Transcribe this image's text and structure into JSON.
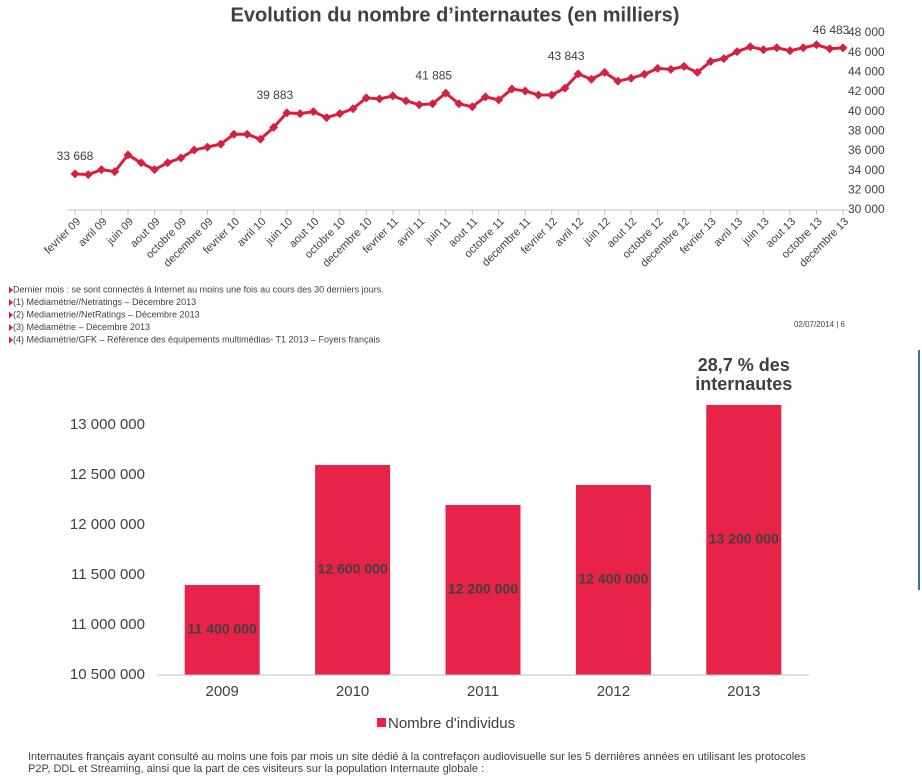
{
  "chart_data": [
    {
      "type": "line",
      "title": "Evolution du nombre d’internautes (en milliers)",
      "color": "#d6203f",
      "categories": [
        "fevrier 09",
        null,
        "avril 09",
        null,
        "juin 09",
        null,
        "aout 09",
        null,
        "octobre 09",
        null,
        "decembre 09",
        null,
        "fevrier 10",
        null,
        "avril 10",
        null,
        "juin 10",
        null,
        "aout 10",
        null,
        "octobre 10",
        null,
        "decembre 10",
        null,
        "fevrier 11",
        null,
        "avril 11",
        null,
        "juin 11",
        null,
        "aout 11",
        null,
        "octobre 11",
        null,
        "decembre 11",
        null,
        "fevrier 12",
        null,
        "avril 12",
        null,
        "juin 12",
        null,
        "aout 12",
        null,
        "octobre 12",
        null,
        "decembre 12",
        null,
        "fevrier 13",
        null,
        "avril 13",
        null,
        "juin 13",
        null,
        "aout 13",
        null,
        "octobre 13",
        null,
        "decembre 13"
      ],
      "values": [
        33668,
        33600,
        34100,
        33900,
        35600,
        34800,
        34100,
        34800,
        35300,
        36100,
        36400,
        36700,
        37700,
        37700,
        37200,
        38400,
        39883,
        39800,
        40000,
        39400,
        39800,
        40300,
        41400,
        41300,
        41600,
        41100,
        40700,
        40800,
        41885,
        40800,
        40500,
        41500,
        41200,
        42300,
        42100,
        41700,
        41700,
        42400,
        43843,
        43300,
        44000,
        43100,
        43400,
        43800,
        44400,
        44300,
        44600,
        44000,
        45100,
        45400,
        46100,
        46600,
        46300,
        46500,
        46200,
        46500,
        46800,
        46400,
        46483
      ],
      "value_labels": [
        "33 668",
        null,
        null,
        null,
        null,
        null,
        null,
        null,
        null,
        null,
        null,
        null,
        null,
        null,
        null,
        null,
        "39 883",
        null,
        null,
        null,
        null,
        null,
        null,
        null,
        null,
        null,
        null,
        null,
        "41 885",
        null,
        null,
        null,
        null,
        null,
        null,
        null,
        null,
        null,
        "43 843",
        null,
        null,
        null,
        null,
        null,
        null,
        null,
        null,
        null,
        null,
        null,
        null,
        null,
        null,
        null,
        null,
        null,
        null,
        null,
        "46 483"
      ],
      "ylim": [
        30000,
        48000
      ],
      "yticks": [
        {
          "value": 30000,
          "label": "30 000"
        },
        {
          "value": 32000,
          "label": "32 000"
        },
        {
          "value": 34000,
          "label": "34 000"
        },
        {
          "value": 36000,
          "label": "36 000"
        },
        {
          "value": 38000,
          "label": "38 000"
        },
        {
          "value": 40000,
          "label": "40 000"
        },
        {
          "value": 42000,
          "label": "42 000"
        },
        {
          "value": 44000,
          "label": "44 000"
        },
        {
          "value": 46000,
          "label": "46 000"
        },
        {
          "value": 48000,
          "label": "48 000"
        }
      ],
      "notes": [
        "Dernier mois : se sont connectés à Internet au moins une fois au cours des 30 derniers jours.",
        "(1) Médiamétrie//Netratings – Décembre 2013",
        "(2) Mediametrie//NetRatings – Décembre 2013",
        "(3) Médiamétrie – Décembre 2013",
        "(4) Médiamétrie/GFK – Référence des équipements multimédias- T1 2013 – Foyers français"
      ],
      "page_info": "02/07/2014  |  6"
    },
    {
      "type": "bar",
      "categories": [
        "2009",
        "2010",
        "2011",
        "2012",
        "2013"
      ],
      "series": [
        {
          "name": "Nombre d'individus",
          "color": "#e8234a",
          "values": [
            11400000,
            12600000,
            12200000,
            12400000,
            13200000
          ],
          "value_labels": [
            "11 400 000",
            "12 600 000",
            "12 200 000",
            "12 400 000",
            "13 200 000"
          ]
        }
      ],
      "annotation": [
        "28,7 % des",
        "internautes"
      ],
      "ylim": [
        10500000,
        13500000
      ],
      "yticks": [
        {
          "value": 10500000,
          "label": "10 500 000"
        },
        {
          "value": 11000000,
          "label": "11 000 000"
        },
        {
          "value": 11500000,
          "label": "11 500 000"
        },
        {
          "value": 12000000,
          "label": "12 000 000"
        },
        {
          "value": 12500000,
          "label": "12 500 000"
        },
        {
          "value": 13000000,
          "label": "13 000 000"
        }
      ],
      "caption": [
        "Internautes français ayant consulté au moins une fois par mois un site dédié à la contrefaçon audiovisuelle sur les 5 dernières années en utilisant les protocoles",
        "P2P, DDL et Streaming, ainsi que la part de ces visiteurs sur la population Internaute globale :"
      ]
    }
  ]
}
